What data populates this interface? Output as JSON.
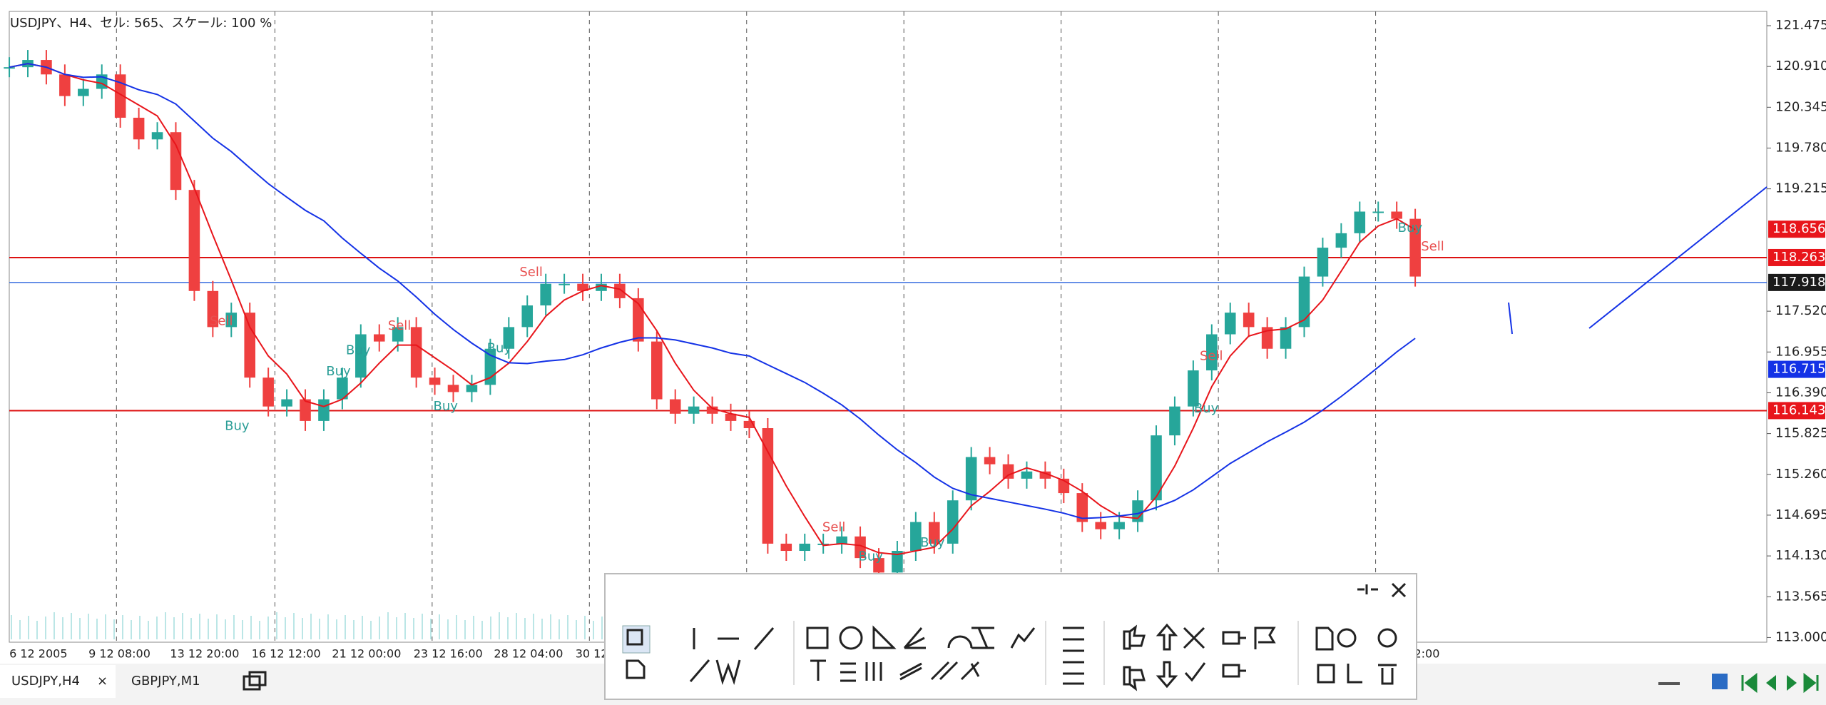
{
  "header": {
    "title": "USDJPY、H4、セル: 565、スケール: 100 %"
  },
  "chart": {
    "closes": [
      120.9,
      121.0,
      120.8,
      120.5,
      120.6,
      120.8,
      120.2,
      119.9,
      120.0,
      119.2,
      117.8,
      117.3,
      117.5,
      116.6,
      116.2,
      116.3,
      116.0,
      116.3,
      116.6,
      117.2,
      117.1,
      117.3,
      116.6,
      116.5,
      116.4,
      116.5,
      117.0,
      117.3,
      117.6,
      117.9,
      117.9,
      117.8,
      117.9,
      117.7,
      117.1,
      116.3,
      116.1,
      116.2,
      116.1,
      116.0,
      115.9,
      114.3,
      114.2,
      114.3,
      114.3,
      114.4,
      114.1,
      113.9,
      114.2,
      114.6,
      114.3,
      114.9,
      115.5,
      115.4,
      115.2,
      115.3,
      115.2,
      115.0,
      114.6,
      114.5,
      114.6,
      114.9,
      115.8,
      116.2,
      116.7,
      117.2,
      117.5,
      117.3,
      117.0,
      117.3,
      118.0,
      118.4,
      118.6,
      118.9,
      118.9,
      118.8,
      118.0
    ],
    "price_labels": [
      "121.475",
      "120.910",
      "120.345",
      "119.780",
      "119.215",
      "117.520",
      "116.955",
      "116.390",
      "115.825",
      "115.260",
      "114.695",
      "114.130",
      "113.565",
      "113.000"
    ],
    "price_tags": [
      {
        "label": "118.656",
        "color": "#e8151b"
      },
      {
        "label": "118.263",
        "color": "#e8151b"
      },
      {
        "label": "117.918",
        "color": "#1a1a1a"
      },
      {
        "label": "116.715",
        "color": "#1432e6"
      },
      {
        "label": "116.143",
        "color": "#e8151b"
      }
    ],
    "time_labels": [
      "6 12 2005",
      "9 12 08:00",
      "13 12 20:00",
      "16 12 12:00",
      "21 12 00:00",
      "23 12 16:00",
      "28 12 04:00",
      "30 12",
      "2:00"
    ],
    "signals": [
      "Sell",
      "Buy",
      "Buy",
      "Sell",
      "Buy",
      "Buy",
      "Sell",
      "Buy",
      "Sell",
      "Buy",
      "Buy",
      "Sell",
      "Buy",
      "Sell",
      "Buy"
    ]
  },
  "tabs": [
    "USDJPY,H4",
    "GBPJPY,M1"
  ],
  "tab_close": "×"
}
